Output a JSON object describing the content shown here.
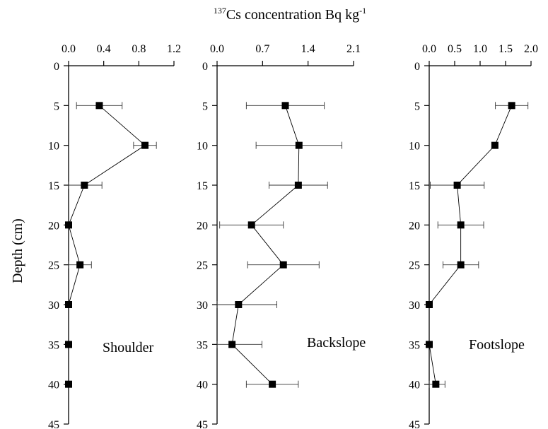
{
  "chart_data": {
    "title_main": "Cs concentration Bq kg",
    "title_sup_prefix": "137",
    "title_sup_suffix": "-1",
    "ylabel": "Depth (cm)",
    "y_ticks": [
      0,
      5,
      10,
      15,
      20,
      25,
      30,
      35,
      40,
      45
    ],
    "ylim": [
      0,
      45
    ],
    "y_inverted": true,
    "panels": [
      {
        "label": "Shoulder",
        "type": "scatter-line-errorbar",
        "xlim": [
          0,
          1.2
        ],
        "x_ticks": [
          "0.0",
          "0.4",
          "0.8",
          "1.2"
        ],
        "x_tick_values": [
          0,
          0.4,
          0.8,
          1.2
        ],
        "depth": [
          5,
          10,
          15,
          20,
          25,
          30,
          35,
          40
        ],
        "value": [
          0.35,
          0.87,
          0.18,
          0.0,
          0.13,
          0.0,
          0.0,
          0.0
        ],
        "error": [
          0.26,
          0.13,
          0.2,
          0.0,
          0.13,
          0.0,
          0.0,
          0.0
        ]
      },
      {
        "label": "Backslope",
        "type": "scatter-line-errorbar",
        "xlim": [
          0,
          2.1
        ],
        "x_ticks": [
          "0.0",
          "0.7",
          "1.4",
          "2.1"
        ],
        "x_tick_values": [
          0,
          0.7,
          1.4,
          2.1
        ],
        "depth": [
          5,
          10,
          15,
          20,
          25,
          30,
          35,
          40
        ],
        "value": [
          1.05,
          1.26,
          1.25,
          0.53,
          1.02,
          0.33,
          0.23,
          0.85
        ],
        "error": [
          0.6,
          0.66,
          0.45,
          0.49,
          0.55,
          0.59,
          0.46,
          0.4
        ]
      },
      {
        "label": "Footslope",
        "type": "scatter-line-errorbar",
        "xlim": [
          0,
          2.0
        ],
        "x_ticks": [
          "0.0",
          "0.5",
          "1.0",
          "1.5",
          "2.0"
        ],
        "x_tick_values": [
          0,
          0.5,
          1.0,
          1.5,
          2.0
        ],
        "depth": [
          5,
          10,
          15,
          20,
          25,
          30,
          35,
          40
        ],
        "value": [
          1.62,
          1.29,
          0.55,
          0.62,
          0.62,
          0.0,
          0.0,
          0.13
        ],
        "error": [
          0.32,
          0.0,
          0.53,
          0.45,
          0.35,
          0.0,
          0.0,
          0.18
        ]
      }
    ]
  }
}
